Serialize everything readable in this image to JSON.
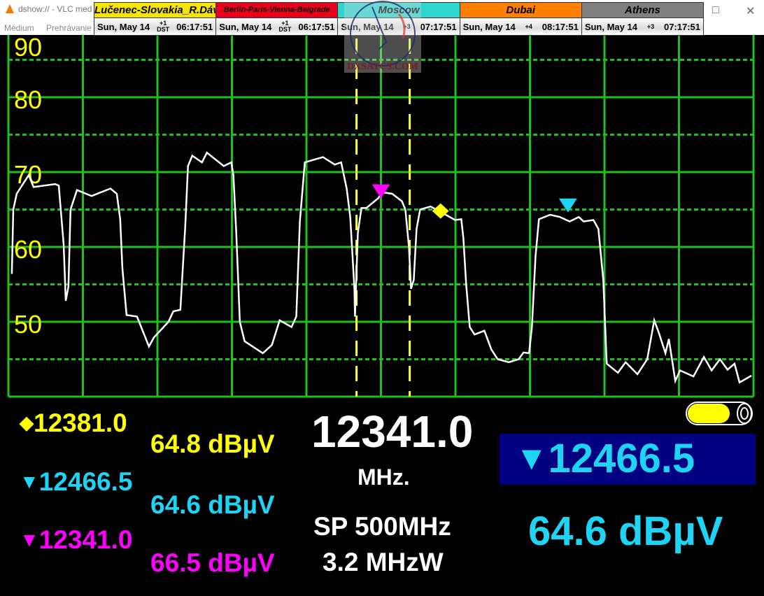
{
  "window": {
    "title": "dshow:// - VLC med",
    "menu": [
      "Médium",
      "Prehrávanie"
    ],
    "maximize_icon": "□",
    "close_icon": "✕"
  },
  "clocks": [
    {
      "city": "Lučenec-Slovakia_R.Dávid",
      "date": "Sun, May 14",
      "offset": "+1",
      "dst": "DST",
      "time": "06:17:51",
      "bg": "#f5e500",
      "fg": "#000000"
    },
    {
      "city": "Berlin-Paris-Vienna-Belgrade",
      "date": "Sun, May 14",
      "offset": "+1",
      "dst": "DST",
      "time": "06:17:51",
      "bg": "#e8001c",
      "fg": "#000000"
    },
    {
      "city": "Moscow",
      "date": "Sun, May 14",
      "offset": "+3",
      "dst": "",
      "time": "07:17:51",
      "bg": "#2fd6d0",
      "fg": "#000000"
    },
    {
      "city": "Dubai",
      "date": "Sun, May 14",
      "offset": "+4",
      "dst": "",
      "time": "08:17:51",
      "bg": "#ff7f00",
      "fg": "#000000"
    },
    {
      "city": "Athens",
      "date": "Sun, May 14",
      "offset": "+3",
      "dst": "",
      "time": "07:17:51",
      "bg": "#808080",
      "fg": "#000000"
    }
  ],
  "watermark": "DXSATCS.COM",
  "colors": {
    "grid": "#1fbf1f",
    "trace": "#ffffff",
    "axis_labels": "#ffff00",
    "marker1": "#ffff00",
    "marker2": "#1ed4f4",
    "marker3": "#ff00ff",
    "highlight_bg": "#000080"
  },
  "chart_data": {
    "type": "line",
    "xlabel": "",
    "ylabel": "",
    "xlim": [
      12091,
      12591
    ],
    "ylim": [
      40,
      90
    ],
    "y_ticks": [
      "90",
      "80",
      "70",
      "60",
      "50"
    ],
    "y_tick_values": [
      90,
      80,
      70,
      60,
      50
    ],
    "grid": true,
    "channel_lines_mhz": [
      12324.6,
      12360.3
    ],
    "trace": [
      [
        12093.3,
        56.4
      ],
      [
        12094.3,
        65.0
      ],
      [
        12096.6,
        67.1
      ],
      [
        12104.6,
        69.6
      ],
      [
        12107.9,
        68.0
      ],
      [
        12122.4,
        68.4
      ],
      [
        12124.8,
        68.2
      ],
      [
        12128.1,
        60.3
      ],
      [
        12129.5,
        52.8
      ],
      [
        12131.3,
        54.7
      ],
      [
        12132.7,
        65.0
      ],
      [
        12137.0,
        67.6
      ],
      [
        12146.8,
        66.8
      ],
      [
        12159.5,
        67.8
      ],
      [
        12163.7,
        67.1
      ],
      [
        12166.0,
        63.7
      ],
      [
        12167.5,
        57.2
      ],
      [
        12170.3,
        50.9
      ],
      [
        12177.3,
        50.7
      ],
      [
        12185.3,
        46.7
      ],
      [
        12188.6,
        47.9
      ],
      [
        12198.4,
        50.0
      ],
      [
        12201.7,
        51.4
      ],
      [
        12206.4,
        51.6
      ],
      [
        12209.7,
        62.8
      ],
      [
        12211.5,
        70.8
      ],
      [
        12214.4,
        72.2
      ],
      [
        12220.9,
        71.3
      ],
      [
        12224.2,
        72.6
      ],
      [
        12235.5,
        70.8
      ],
      [
        12240.6,
        71.3
      ],
      [
        12242.0,
        69.6
      ],
      [
        12243.9,
        61.9
      ],
      [
        12246.3,
        50.0
      ],
      [
        12249.5,
        47.4
      ],
      [
        12261.7,
        45.8
      ],
      [
        12267.8,
        46.9
      ],
      [
        12273.0,
        50.2
      ],
      [
        12281.0,
        49.3
      ],
      [
        12284.2,
        50.7
      ],
      [
        12286.6,
        63.4
      ],
      [
        12289.9,
        71.3
      ],
      [
        12302.1,
        72.0
      ],
      [
        12310.0,
        71.0
      ],
      [
        12314.3,
        71.3
      ],
      [
        12318.0,
        67.8
      ],
      [
        12320.4,
        64.0
      ],
      [
        12323.2,
        54.4
      ],
      [
        12323.6,
        50.7
      ],
      [
        12325.5,
        61.9
      ],
      [
        12327.9,
        65.2
      ],
      [
        12331.2,
        65.2
      ],
      [
        12339.1,
        66.5
      ],
      [
        12341.9,
        67.3
      ],
      [
        12348.5,
        67.1
      ],
      [
        12355.1,
        66.1
      ],
      [
        12357.4,
        65.0
      ],
      [
        12359.8,
        60.0
      ],
      [
        12361.2,
        54.4
      ],
      [
        12363.0,
        55.6
      ],
      [
        12364.9,
        62.4
      ],
      [
        12367.3,
        65.0
      ],
      [
        12374.3,
        65.4
      ],
      [
        12381.8,
        64.6
      ],
      [
        12390.7,
        63.6
      ],
      [
        12394.9,
        63.7
      ],
      [
        12396.3,
        61.2
      ],
      [
        12398.2,
        55.0
      ],
      [
        12400.6,
        49.3
      ],
      [
        12403.8,
        48.3
      ],
      [
        12410.4,
        48.8
      ],
      [
        12415.1,
        46.3
      ],
      [
        12419.3,
        45.0
      ],
      [
        12426.8,
        44.6
      ],
      [
        12433.4,
        45.0
      ],
      [
        12436.7,
        45.9
      ],
      [
        12440.4,
        45.8
      ],
      [
        12442.3,
        49.3
      ],
      [
        12444.7,
        58.7
      ],
      [
        12447.0,
        63.7
      ],
      [
        12454.5,
        64.3
      ],
      [
        12461.1,
        64.0
      ],
      [
        12467.6,
        63.4
      ],
      [
        12473.7,
        64.0
      ],
      [
        12477.0,
        63.4
      ],
      [
        12483.6,
        63.6
      ],
      [
        12486.9,
        62.4
      ],
      [
        12490.2,
        55.6
      ],
      [
        12492.5,
        44.4
      ],
      [
        12500.0,
        43.2
      ],
      [
        12505.2,
        44.6
      ],
      [
        12513.1,
        43.0
      ],
      [
        12519.7,
        45.0
      ],
      [
        12524.4,
        50.2
      ],
      [
        12527.7,
        48.4
      ],
      [
        12531.9,
        45.8
      ],
      [
        12534.2,
        47.7
      ],
      [
        12538.5,
        42.1
      ],
      [
        12541.7,
        43.5
      ],
      [
        12550.7,
        42.7
      ],
      [
        12557.7,
        45.3
      ],
      [
        12562.9,
        43.5
      ],
      [
        12568.5,
        45.0
      ],
      [
        12573.6,
        43.6
      ],
      [
        12578.3,
        44.4
      ],
      [
        12581.6,
        41.9
      ],
      [
        12589.6,
        42.8
      ]
    ],
    "markers": [
      {
        "shape": "diamond",
        "freq": 12381.0,
        "level": 64.8,
        "color": "#ffff00"
      },
      {
        "shape": "triangle",
        "freq": 12466.5,
        "level": 64.6,
        "color": "#1ed4f4"
      },
      {
        "shape": "triangle",
        "freq": 12341.0,
        "level": 66.5,
        "color": "#ff00ff"
      }
    ]
  },
  "readouts": {
    "m1": {
      "symbol": "◆",
      "freq": "12381.0",
      "level": "64.8 dBµV"
    },
    "m2": {
      "symbol": "▼",
      "freq": "12466.5",
      "level": "64.6 dBµV"
    },
    "m3": {
      "symbol": "▼",
      "freq": "12341.0",
      "level": "66.5 dBµV"
    },
    "center_freq": "12341.0",
    "center_unit": "MHz.",
    "span": "SP 500MHz",
    "rbw": "3.2 MHzW",
    "active_marker_symbol": "▼",
    "active_marker_freq": "12466.5",
    "active_marker_level": "64.6 dBµV",
    "battery_level": 0.7
  }
}
